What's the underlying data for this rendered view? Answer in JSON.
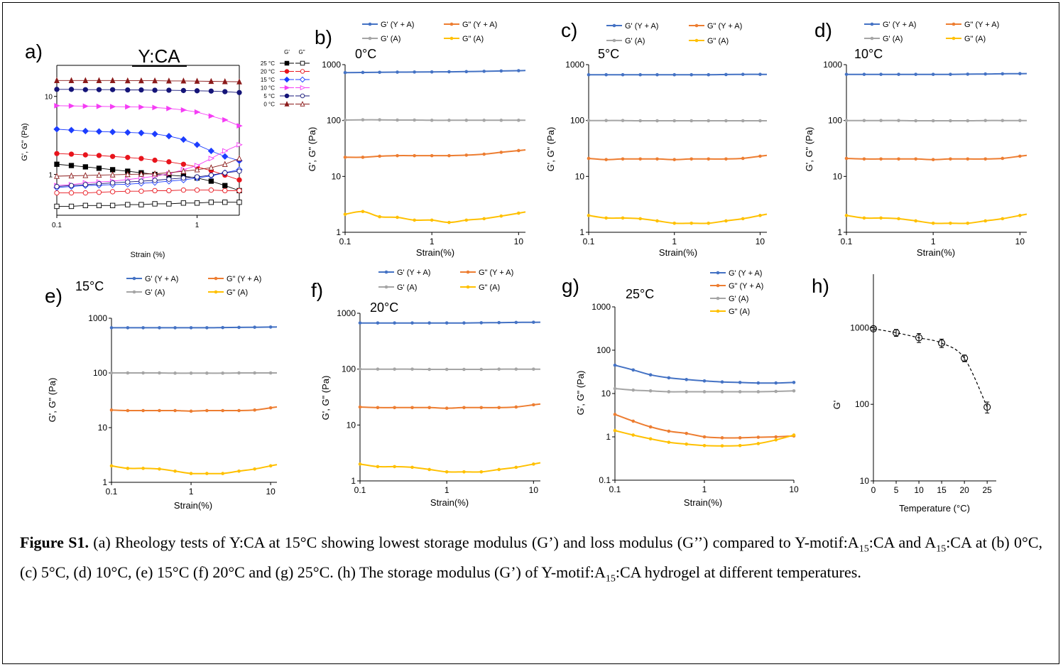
{
  "colors": {
    "yaG1": "#4472c4",
    "yaG2": "#ed7d31",
    "aG1": "#a5a5a5",
    "aG2": "#ffc000",
    "t25": "#000000",
    "t20": "#e8141c",
    "t15": "#1c3dff",
    "t10": "#f53df5",
    "t5": "#141478",
    "t0": "#8b1a1a"
  },
  "caption": {
    "label": "Figure S1.",
    "text1": " (a) Rheology tests of Y:CA at 15°C showing lowest storage modulus (G’) and loss modulus (G’’) compared to Y-motif:A",
    "sub1": "15",
    "text2": ":CA and A",
    "sub2": "15",
    "text3": ":CA at  (b) 0°C, (c) 5°C, (d) 10°C, (e) 15°C (f) 20°C and (g) 25°C. (h) The storage modulus (G’) of Y-motif:A",
    "sub3": "15",
    "text4": ":CA hydrogel at different temperatures."
  },
  "chart_data": [
    {
      "id": "a",
      "panel_label": "a)",
      "title": "Y:CA",
      "type": "line",
      "xlabel": "Strain (%)",
      "ylabel": "G', G\" (Pa)",
      "xscale": "log",
      "yscale": "log",
      "xlim": [
        0.1,
        2
      ],
      "ylim": [
        0.3,
        25
      ],
      "xticks": [
        "0.1",
        "1"
      ],
      "yticks": [
        "1",
        "10"
      ],
      "legend_position": "top-right",
      "legend_headers": [
        "G'",
        "G\""
      ],
      "x": [
        0.1,
        0.127,
        0.16,
        0.2,
        0.25,
        0.32,
        0.4,
        0.5,
        0.63,
        0.8,
        1.0,
        1.26,
        1.58,
        2.0
      ],
      "series": [
        {
          "name": "25 °C",
          "modulus": "G'",
          "color": "#000000",
          "marker": "square",
          "filled": true,
          "values": [
            1.35,
            1.3,
            1.25,
            1.2,
            1.15,
            1.1,
            1.05,
            1.0,
            0.98,
            0.95,
            0.9,
            0.82,
            0.72,
            0.62
          ]
        },
        {
          "name": "25 °C",
          "modulus": "G\"",
          "color": "#000000",
          "marker": "square",
          "filled": false,
          "values": [
            0.39,
            0.39,
            0.4,
            0.4,
            0.4,
            0.41,
            0.41,
            0.42,
            0.42,
            0.43,
            0.43,
            0.44,
            0.44,
            0.44
          ]
        },
        {
          "name": "20 °C",
          "modulus": "G'",
          "color": "#e8141c",
          "marker": "circle",
          "filled": true,
          "values": [
            1.85,
            1.82,
            1.78,
            1.75,
            1.7,
            1.65,
            1.6,
            1.52,
            1.45,
            1.35,
            1.25,
            1.12,
            0.98,
            0.85
          ]
        },
        {
          "name": "20 °C",
          "modulus": "G\"",
          "color": "#e8141c",
          "marker": "circle",
          "filled": false,
          "values": [
            0.58,
            0.58,
            0.58,
            0.59,
            0.6,
            0.61,
            0.61,
            0.62,
            0.62,
            0.63,
            0.63,
            0.63,
            0.62,
            0.62
          ]
        },
        {
          "name": "15 °C",
          "modulus": "G'",
          "color": "#1c3dff",
          "marker": "diamond",
          "filled": true,
          "values": [
            3.8,
            3.7,
            3.6,
            3.55,
            3.5,
            3.45,
            3.4,
            3.3,
            3.1,
            2.8,
            2.4,
            2.0,
            1.7,
            1.5
          ]
        },
        {
          "name": "15 °C",
          "modulus": "G\"",
          "color": "#1c3dff",
          "marker": "diamond",
          "filled": false,
          "values": [
            0.68,
            0.7,
            0.72,
            0.73,
            0.74,
            0.75,
            0.77,
            0.79,
            0.82,
            0.85,
            0.9,
            0.96,
            1.05,
            1.15
          ]
        },
        {
          "name": "10 °C",
          "modulus": "G'",
          "color": "#f53df5",
          "marker": "triangle-right",
          "filled": true,
          "values": [
            7.6,
            7.55,
            7.5,
            7.45,
            7.4,
            7.35,
            7.3,
            7.2,
            7.0,
            6.7,
            6.3,
            5.6,
            5.0,
            4.2
          ]
        },
        {
          "name": "10 °C",
          "modulus": "G\"",
          "color": "#f53df5",
          "marker": "triangle-right",
          "filled": false,
          "values": [
            0.72,
            0.74,
            0.78,
            0.8,
            0.82,
            0.86,
            0.9,
            0.95,
            1.02,
            1.15,
            1.3,
            1.6,
            2.0,
            2.4
          ]
        },
        {
          "name": "5 °C",
          "modulus": "G'",
          "color": "#141478",
          "marker": "circle",
          "filled": true,
          "values": [
            12.3,
            12.3,
            12.2,
            12.2,
            12.2,
            12.1,
            12.1,
            12.0,
            12.0,
            11.9,
            11.8,
            11.7,
            11.5,
            11.2
          ]
        },
        {
          "name": "5 °C",
          "modulus": "G\"",
          "color": "#141478",
          "marker": "circle",
          "filled": false,
          "values": [
            0.7,
            0.72,
            0.74,
            0.76,
            0.78,
            0.8,
            0.82,
            0.84,
            0.87,
            0.9,
            0.93,
            0.98,
            1.05,
            1.1
          ]
        },
        {
          "name": "0 °C",
          "modulus": "G'",
          "color": "#8b1a1a",
          "marker": "triangle-up",
          "filled": true,
          "values": [
            16.0,
            16.0,
            16.0,
            16.0,
            16.0,
            15.9,
            15.9,
            15.9,
            15.8,
            15.8,
            15.7,
            15.6,
            15.5,
            15.4
          ]
        },
        {
          "name": "0 °C",
          "modulus": "G\"",
          "color": "#8b1a1a",
          "marker": "triangle-up",
          "filled": false,
          "values": [
            0.95,
            0.96,
            0.97,
            0.98,
            0.99,
            1.0,
            1.01,
            1.02,
            1.05,
            1.1,
            1.15,
            1.22,
            1.35,
            1.6
          ]
        }
      ]
    },
    {
      "id": "b",
      "panel_label": "b)",
      "title": "0°C",
      "type": "line",
      "xlabel": "Strain(%)",
      "ylabel": "G', G\" (Pa)",
      "xscale": "log",
      "yscale": "log",
      "xlim": [
        0.1,
        12
      ],
      "ylim": [
        1,
        1000
      ],
      "xticks": [
        "0.1",
        "1",
        "10"
      ],
      "yticks": [
        "1",
        "10",
        "100",
        "1000"
      ],
      "legend_position": "top",
      "x": [
        0.1,
        0.16,
        0.25,
        0.4,
        0.63,
        1.0,
        1.58,
        2.5,
        4.0,
        6.3,
        10.0
      ],
      "series": [
        {
          "name": "G' (Y + A)",
          "color": "#4472c4",
          "values": [
            720,
            725,
            730,
            735,
            738,
            740,
            745,
            750,
            760,
            770,
            780
          ]
        },
        {
          "name": "G\" (Y + A)",
          "color": "#ed7d31",
          "values": [
            22,
            22,
            23,
            23.5,
            23.5,
            23.5,
            23.5,
            24,
            25,
            27,
            29
          ]
        },
        {
          "name": "G' (A)",
          "color": "#a5a5a5",
          "values": [
            102,
            103,
            103,
            102,
            102,
            101,
            101,
            101,
            101,
            101,
            101
          ]
        },
        {
          "name": "G\" (A)",
          "color": "#ffc000",
          "values": [
            2.1,
            2.35,
            1.9,
            1.85,
            1.65,
            1.65,
            1.5,
            1.65,
            1.75,
            1.95,
            2.2
          ]
        }
      ]
    },
    {
      "id": "c",
      "panel_label": "c)",
      "title": "5°C",
      "type": "line",
      "xlabel": "Strain(%)",
      "ylabel": "G', G\" (Pa)",
      "xscale": "log",
      "yscale": "log",
      "xlim": [
        0.1,
        12
      ],
      "ylim": [
        1,
        1000
      ],
      "xticks": [
        "0.1",
        "1",
        "10"
      ],
      "yticks": [
        "1",
        "10",
        "100",
        "1000"
      ],
      "legend_position": "top",
      "x": [
        0.1,
        0.16,
        0.25,
        0.4,
        0.63,
        1.0,
        1.58,
        2.5,
        4.0,
        6.3,
        10.0
      ],
      "series": [
        {
          "name": "G' (Y + A)",
          "color": "#4472c4",
          "values": [
            660,
            660,
            660,
            660,
            660,
            660,
            660,
            660,
            665,
            670,
            670
          ]
        },
        {
          "name": "G\" (Y + A)",
          "color": "#ed7d31",
          "values": [
            21,
            20,
            20.5,
            20.5,
            20.5,
            20,
            20.5,
            20.5,
            20.5,
            21,
            23
          ]
        },
        {
          "name": "G' (A)",
          "color": "#a5a5a5",
          "values": [
            100,
            100,
            100,
            99,
            99,
            99,
            99,
            99,
            99,
            99,
            99
          ]
        },
        {
          "name": "G\" (A)",
          "color": "#ffc000",
          "values": [
            2.0,
            1.8,
            1.8,
            1.75,
            1.6,
            1.45,
            1.45,
            1.45,
            1.6,
            1.75,
            2.0
          ]
        }
      ]
    },
    {
      "id": "d",
      "panel_label": "d)",
      "title": "10°C",
      "type": "line",
      "xlabel": "Strain(%)",
      "ylabel": "G', G\" (Pa)",
      "xscale": "log",
      "yscale": "log",
      "xlim": [
        0.1,
        12
      ],
      "ylim": [
        1,
        1000
      ],
      "xticks": [
        "0.1",
        "1",
        "10"
      ],
      "yticks": [
        "1",
        "10",
        "100",
        "1000"
      ],
      "legend_position": "top",
      "x": [
        0.1,
        0.16,
        0.25,
        0.4,
        0.63,
        1.0,
        1.58,
        2.5,
        4.0,
        6.3,
        10.0
      ],
      "series": [
        {
          "name": "G' (Y + A)",
          "color": "#4472c4",
          "values": [
            670,
            670,
            670,
            670,
            670,
            670,
            670,
            675,
            680,
            685,
            690
          ]
        },
        {
          "name": "G\" (Y + A)",
          "color": "#ed7d31",
          "values": [
            21,
            20.5,
            20.5,
            20.5,
            20.5,
            20,
            20.5,
            20.5,
            20.5,
            21,
            23
          ]
        },
        {
          "name": "G' (A)",
          "color": "#a5a5a5",
          "values": [
            100,
            100,
            100,
            100,
            99,
            99,
            99,
            99,
            100,
            100,
            100
          ]
        },
        {
          "name": "G\" (A)",
          "color": "#ffc000",
          "values": [
            2.0,
            1.8,
            1.8,
            1.75,
            1.6,
            1.45,
            1.45,
            1.45,
            1.6,
            1.75,
            2.0
          ]
        }
      ]
    },
    {
      "id": "e",
      "panel_label": "e)",
      "title": "15°C",
      "type": "line",
      "xlabel": "Strain(%)",
      "ylabel": "G', G\" (Pa)",
      "xscale": "log",
      "yscale": "log",
      "xlim": [
        0.1,
        12
      ],
      "ylim": [
        1,
        1000
      ],
      "xticks": [
        "0.1",
        "1",
        "10"
      ],
      "yticks": [
        "1",
        "10",
        "100",
        "1000"
      ],
      "legend_position": "top",
      "x": [
        0.1,
        0.16,
        0.25,
        0.4,
        0.63,
        1.0,
        1.58,
        2.5,
        4.0,
        6.3,
        10.0
      ],
      "series": [
        {
          "name": "G' (Y + A)",
          "color": "#4472c4",
          "values": [
            670,
            670,
            670,
            670,
            670,
            670,
            670,
            675,
            680,
            685,
            690
          ]
        },
        {
          "name": "G\" (Y + A)",
          "color": "#ed7d31",
          "values": [
            21,
            20.5,
            20.5,
            20.5,
            20.5,
            20,
            20.5,
            20.5,
            20.5,
            21,
            23
          ]
        },
        {
          "name": "G' (A)",
          "color": "#a5a5a5",
          "values": [
            100,
            100,
            100,
            100,
            99,
            99,
            99,
            99,
            100,
            100,
            100
          ]
        },
        {
          "name": "G\" (A)",
          "color": "#ffc000",
          "values": [
            2.0,
            1.8,
            1.8,
            1.75,
            1.6,
            1.45,
            1.45,
            1.45,
            1.6,
            1.75,
            2.0
          ]
        }
      ]
    },
    {
      "id": "f",
      "panel_label": "f)",
      "title": "20°C",
      "type": "line",
      "xlabel": "Strain(%)",
      "ylabel": "G', G\" (Pa)",
      "xscale": "log",
      "yscale": "log",
      "xlim": [
        0.1,
        12
      ],
      "ylim": [
        1,
        1000
      ],
      "xticks": [
        "0.1",
        "1",
        "10"
      ],
      "yticks": [
        "1",
        "10",
        "100",
        "1000"
      ],
      "legend_position": "top",
      "x": [
        0.1,
        0.16,
        0.25,
        0.4,
        0.63,
        1.0,
        1.58,
        2.5,
        4.0,
        6.3,
        10.0
      ],
      "series": [
        {
          "name": "G' (Y + A)",
          "color": "#4472c4",
          "values": [
            670,
            670,
            670,
            670,
            670,
            670,
            670,
            675,
            680,
            685,
            690
          ]
        },
        {
          "name": "G\" (Y + A)",
          "color": "#ed7d31",
          "values": [
            21,
            20.5,
            20.5,
            20.5,
            20.5,
            20,
            20.5,
            20.5,
            20.5,
            21,
            23
          ]
        },
        {
          "name": "G' (A)",
          "color": "#a5a5a5",
          "values": [
            100,
            100,
            100,
            100,
            99,
            99,
            99,
            99,
            100,
            100,
            100
          ]
        },
        {
          "name": "G\" (A)",
          "color": "#ffc000",
          "values": [
            2.0,
            1.8,
            1.8,
            1.75,
            1.6,
            1.45,
            1.45,
            1.45,
            1.6,
            1.75,
            2.0
          ]
        }
      ]
    },
    {
      "id": "g",
      "panel_label": "g)",
      "title": "25°C",
      "type": "line",
      "xlabel": "Strain(%)",
      "ylabel": "G', G\" (Pa)",
      "xscale": "log",
      "yscale": "log",
      "xlim": [
        0.1,
        10
      ],
      "ylim": [
        0.1,
        1000
      ],
      "xticks": [
        "0.1",
        "1",
        "10"
      ],
      "yticks": [
        "0.1",
        "1",
        "10",
        "100",
        "1000"
      ],
      "legend_position": "top-right",
      "x": [
        0.1,
        0.16,
        0.25,
        0.4,
        0.63,
        1.0,
        1.58,
        2.5,
        4.0,
        6.3,
        10.0
      ],
      "series": [
        {
          "name": "G' (Y + A)",
          "color": "#4472c4",
          "values": [
            45,
            35,
            27,
            23,
            21,
            19.5,
            18.5,
            18,
            17.5,
            17.5,
            18
          ]
        },
        {
          "name": "G\" (Y + A)",
          "color": "#ed7d31",
          "values": [
            3.3,
            2.3,
            1.7,
            1.35,
            1.2,
            1.0,
            0.95,
            0.95,
            0.98,
            1.0,
            1.05
          ]
        },
        {
          "name": "G' (A)",
          "color": "#a5a5a5",
          "values": [
            13,
            12,
            11.5,
            11,
            11,
            11,
            11,
            11,
            11,
            11.2,
            11.5
          ]
        },
        {
          "name": "G\" (A)",
          "color": "#ffc000",
          "values": [
            1.4,
            1.1,
            0.9,
            0.75,
            0.68,
            0.63,
            0.62,
            0.63,
            0.7,
            0.85,
            1.1
          ]
        }
      ]
    },
    {
      "id": "h",
      "panel_label": "h)",
      "type": "scatter",
      "xlabel": "Temperature (°C)",
      "ylabel": "G'",
      "xscale": "linear",
      "yscale": "log",
      "xlim": [
        0,
        27
      ],
      "ylim": [
        10,
        5000
      ],
      "xticks": [
        "0",
        "5",
        "10",
        "15",
        "20",
        "25"
      ],
      "yticks": [
        "10",
        "100",
        "1000"
      ],
      "x": [
        0,
        5,
        10,
        15,
        20,
        25
      ],
      "series": [
        {
          "values": [
            970,
            860,
            740,
            630,
            400,
            92
          ],
          "error": [
            40,
            90,
            100,
            80,
            40,
            15
          ]
        }
      ]
    }
  ]
}
